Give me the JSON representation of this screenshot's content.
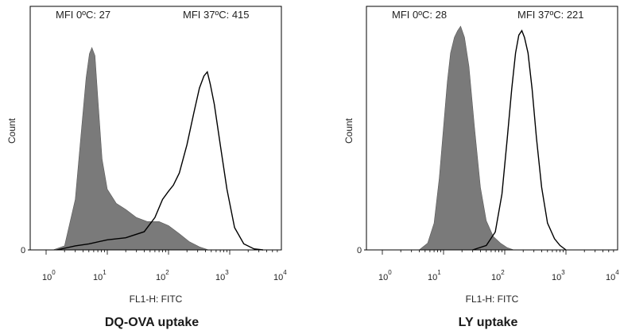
{
  "chart_data": [
    {
      "type": "area",
      "title": "DQ-OVA uptake",
      "xlabel": "FL1-H: FITC",
      "ylabel": "Count",
      "x_scale": "log",
      "xlim": [
        1,
        10000
      ],
      "y_tick": "0",
      "x_ticks": [
        {
          "base": "10",
          "exp": "0"
        },
        {
          "base": "10",
          "exp": "1"
        },
        {
          "base": "10",
          "exp": "2"
        },
        {
          "base": "10",
          "exp": "3"
        },
        {
          "base": "10",
          "exp": "4"
        }
      ],
      "annotations": [
        "MFI 0ºC: 27",
        "MFI 37ºC: 415"
      ],
      "series": [
        {
          "style": "filled",
          "color": "#7a7a7a",
          "points": [
            [
              1.3,
              0
            ],
            [
              2.0,
              2
            ],
            [
              3.0,
              25
            ],
            [
              3.8,
              60
            ],
            [
              4.5,
              85
            ],
            [
              5.1,
              97
            ],
            [
              5.6,
              100
            ],
            [
              6.3,
              96
            ],
            [
              7.0,
              75
            ],
            [
              8.2,
              45
            ],
            [
              10,
              30
            ],
            [
              14,
              23
            ],
            [
              20,
              20
            ],
            [
              30,
              16
            ],
            [
              45,
              14
            ],
            [
              70,
              14
            ],
            [
              100,
              12
            ],
            [
              150,
              8
            ],
            [
              220,
              4
            ],
            [
              320,
              1.5
            ],
            [
              450,
              0
            ]
          ]
        },
        {
          "style": "line",
          "color": "#000000",
          "points": [
            [
              1.5,
              0
            ],
            [
              3,
              2
            ],
            [
              5,
              3
            ],
            [
              10,
              5
            ],
            [
              20,
              6
            ],
            [
              40,
              9
            ],
            [
              60,
              16
            ],
            [
              80,
              25
            ],
            [
              100,
              29
            ],
            [
              120,
              32
            ],
            [
              150,
              38
            ],
            [
              200,
              52
            ],
            [
              260,
              68
            ],
            [
              320,
              80
            ],
            [
              380,
              86
            ],
            [
              430,
              88
            ],
            [
              480,
              82
            ],
            [
              560,
              72
            ],
            [
              700,
              52
            ],
            [
              900,
              30
            ],
            [
              1200,
              11
            ],
            [
              1700,
              3
            ],
            [
              2500,
              0.5
            ],
            [
              3500,
              0
            ]
          ]
        }
      ]
    },
    {
      "type": "area",
      "title": "LY uptake",
      "xlabel": "FL1-H: FITC",
      "ylabel": "Count",
      "x_scale": "log",
      "xlim": [
        1,
        10000
      ],
      "y_tick": "0",
      "x_ticks": [
        {
          "base": "10",
          "exp": "0"
        },
        {
          "base": "10",
          "exp": "1"
        },
        {
          "base": "10",
          "exp": "2"
        },
        {
          "base": "10",
          "exp": "3"
        },
        {
          "base": "10",
          "exp": "4"
        }
      ],
      "annotations": [
        "MFI 0ºC: 28",
        "MFI 37ºC: 221"
      ],
      "series": [
        {
          "style": "filled",
          "color": "#7a7a7a",
          "points": [
            [
              4,
              0
            ],
            [
              5.5,
              3
            ],
            [
              7,
              12
            ],
            [
              8.5,
              32
            ],
            [
              10,
              55
            ],
            [
              11.5,
              75
            ],
            [
              13,
              88
            ],
            [
              15,
              95
            ],
            [
              17,
              98
            ],
            [
              19,
              100
            ],
            [
              22,
              95
            ],
            [
              26,
              82
            ],
            [
              32,
              55
            ],
            [
              40,
              28
            ],
            [
              50,
              13
            ],
            [
              65,
              6
            ],
            [
              85,
              3
            ],
            [
              110,
              1
            ],
            [
              140,
              0
            ]
          ]
        },
        {
          "style": "line",
          "color": "#000000",
          "points": [
            [
              30,
              0
            ],
            [
              50,
              2
            ],
            [
              70,
              8
            ],
            [
              90,
              25
            ],
            [
              110,
              50
            ],
            [
              130,
              72
            ],
            [
              150,
              88
            ],
            [
              170,
              96
            ],
            [
              190,
              98
            ],
            [
              210,
              95
            ],
            [
              240,
              88
            ],
            [
              280,
              72
            ],
            [
              330,
              50
            ],
            [
              400,
              28
            ],
            [
              500,
              12
            ],
            [
              650,
              5
            ],
            [
              800,
              2
            ],
            [
              1000,
              0
            ]
          ]
        }
      ]
    }
  ]
}
